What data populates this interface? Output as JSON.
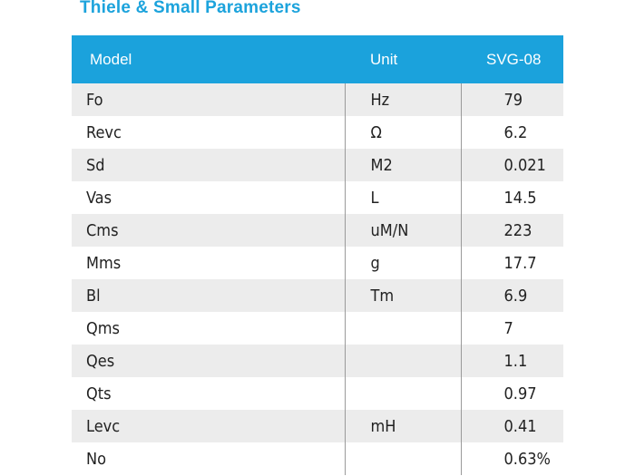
{
  "title": "Thiele & Small Parameters",
  "colors": {
    "accent": "#1ba2dc",
    "row_shade": "#ececec",
    "divider": "#9a9a9a"
  },
  "table": {
    "headers": {
      "model": "Model",
      "unit": "Unit",
      "value": "SVG-08"
    },
    "rows": [
      {
        "model": "Fo",
        "unit": "Hz",
        "value": "79"
      },
      {
        "model": "Revc",
        "unit": "Ω",
        "value": "6.2"
      },
      {
        "model": "Sd",
        "unit": "M2",
        "value": "0.021"
      },
      {
        "model": "Vas",
        "unit": "L",
        "value": "14.5"
      },
      {
        "model": "Cms",
        "unit": "uM/N",
        "value": "223"
      },
      {
        "model": "Mms",
        "unit": "g",
        "value": "17.7"
      },
      {
        "model": "Bl",
        "unit": "Tm",
        "value": "6.9"
      },
      {
        "model": "Qms",
        "unit": "",
        "value": "7"
      },
      {
        "model": "Qes",
        "unit": "",
        "value": "1.1"
      },
      {
        "model": "Qts",
        "unit": "",
        "value": "0.97"
      },
      {
        "model": "Levc",
        "unit": "mH",
        "value": "0.41"
      },
      {
        "model": "No",
        "unit": "",
        "value": "0.63%"
      }
    ]
  }
}
